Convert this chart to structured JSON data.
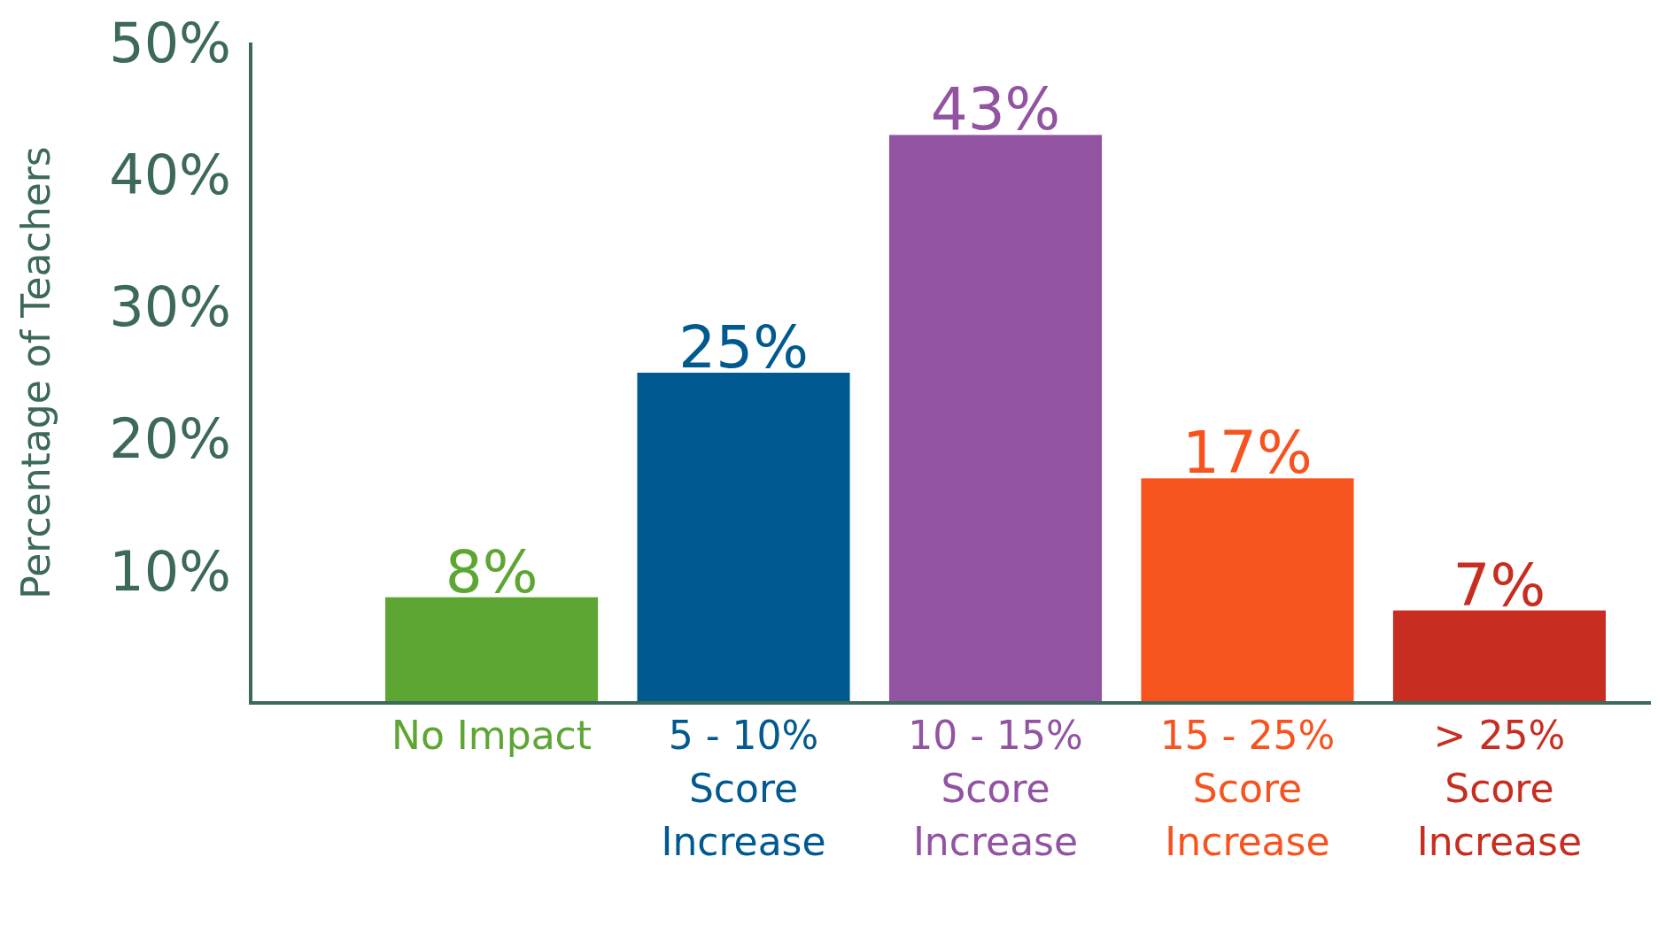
{
  "chart_data": {
    "type": "bar",
    "ylabel": "Percentage of Teachers",
    "categories": [
      "No Impact",
      "5 - 10% Score Increase",
      "10 - 15% Score Increase",
      "15 - 25% Score Increase",
      "> 25% Score Increase"
    ],
    "values": [
      8,
      25,
      43,
      17,
      7
    ],
    "value_labels": [
      "8%",
      "25%",
      "43%",
      "17%",
      "7%"
    ],
    "colors": [
      "#5ea634",
      "#005a8f",
      "#9253a3",
      "#f7531f",
      "#c72d20"
    ],
    "ylim": [
      0,
      50
    ],
    "yticks": [
      {
        "value": 10,
        "label": "10%"
      },
      {
        "value": 20,
        "label": "20%"
      },
      {
        "value": 30,
        "label": "30%"
      },
      {
        "value": 40,
        "label": "40%"
      },
      {
        "value": 50,
        "label": "50%"
      }
    ],
    "grid": false
  }
}
